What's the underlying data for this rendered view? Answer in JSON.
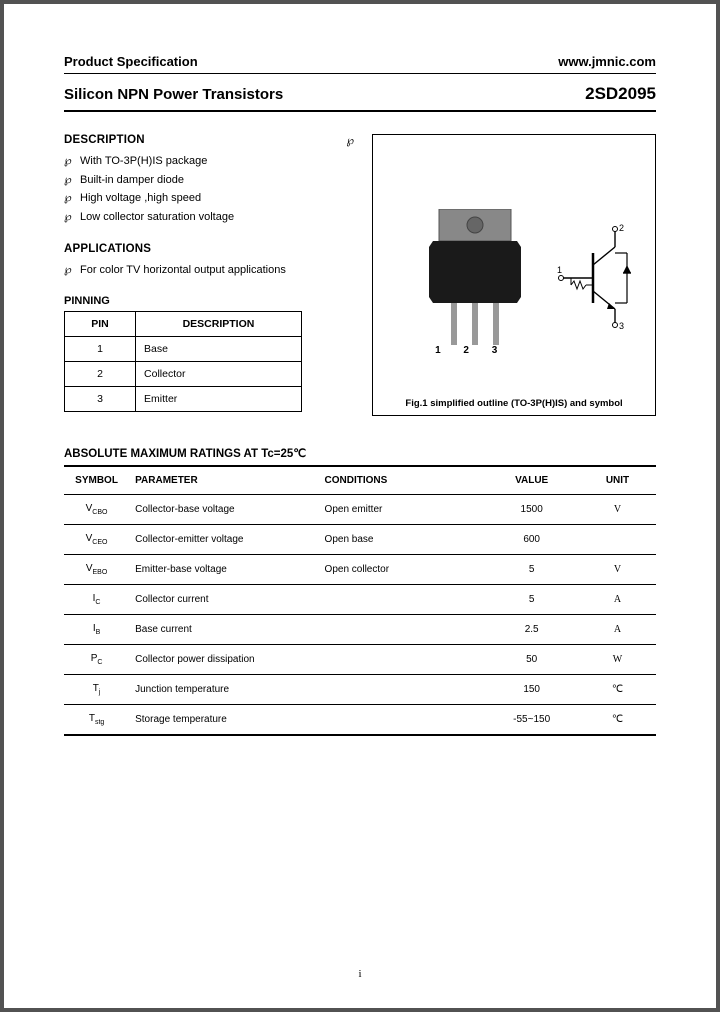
{
  "header": {
    "left": "Product Specification",
    "right": "www.jmnic.com"
  },
  "title": {
    "left": "Silicon NPN Power Transistors",
    "right": "2SD2095"
  },
  "description": {
    "heading": "DESCRIPTION",
    "side_mark": "℘",
    "bullets": [
      "With TO-3P(H)IS package",
      "Built-in damper diode",
      "High voltage ,high speed",
      "Low collector saturation voltage"
    ]
  },
  "applications": {
    "heading": "APPLICATIONS",
    "bullets": [
      "For color TV horizontal output applications"
    ]
  },
  "pinning": {
    "heading": "PINNING",
    "col_pin": "PIN",
    "col_desc": "DESCRIPTION",
    "rows": [
      {
        "pin": "1",
        "desc": "Base"
      },
      {
        "pin": "2",
        "desc": "Collector"
      },
      {
        "pin": "3",
        "desc": "Emitter"
      }
    ]
  },
  "figure": {
    "pin_labels": "1  2  3",
    "caption": "Fig.1 simplified outline (TO-3P(H)IS) and symbol",
    "sym_labels": {
      "t1": "1",
      "t2": "2",
      "t3": "3"
    }
  },
  "ratings": {
    "heading": "ABSOLUTE MAXIMUM RATINGS AT Tc=25℃",
    "cols": {
      "symbol": "SYMBOL",
      "parameter": "PARAMETER",
      "conditions": "CONDITIONS",
      "value": "VALUE",
      "unit": "UNIT"
    },
    "rows": [
      {
        "sym": "V",
        "sub": "CBO",
        "par": "Collector-base voltage",
        "con": "Open emitter",
        "val": "1500",
        "unit": "V"
      },
      {
        "sym": "V",
        "sub": "CEO",
        "par": "Collector-emitter voltage",
        "con": "Open base",
        "val": "600",
        "unit": ""
      },
      {
        "sym": "V",
        "sub": "EBO",
        "par": "Emitter-base voltage",
        "con": "Open collector",
        "val": "5",
        "unit": "V"
      },
      {
        "sym": "I",
        "sub": "C",
        "par": "Collector current",
        "con": "",
        "val": "5",
        "unit": "A"
      },
      {
        "sym": "I",
        "sub": "B",
        "par": "Base current",
        "con": "",
        "val": "2.5",
        "unit": "A"
      },
      {
        "sym": "P",
        "sub": "C",
        "par": "Collector power dissipation",
        "con": "",
        "val": "50",
        "unit": "W"
      },
      {
        "sym": "T",
        "sub": "j",
        "par": "Junction temperature",
        "con": "",
        "val": "150",
        "unit": "℃"
      },
      {
        "sym": "T",
        "sub": "stg",
        "par": "Storage temperature",
        "con": "",
        "val": "-55~150",
        "unit": "℃"
      }
    ]
  },
  "page_number": "i"
}
